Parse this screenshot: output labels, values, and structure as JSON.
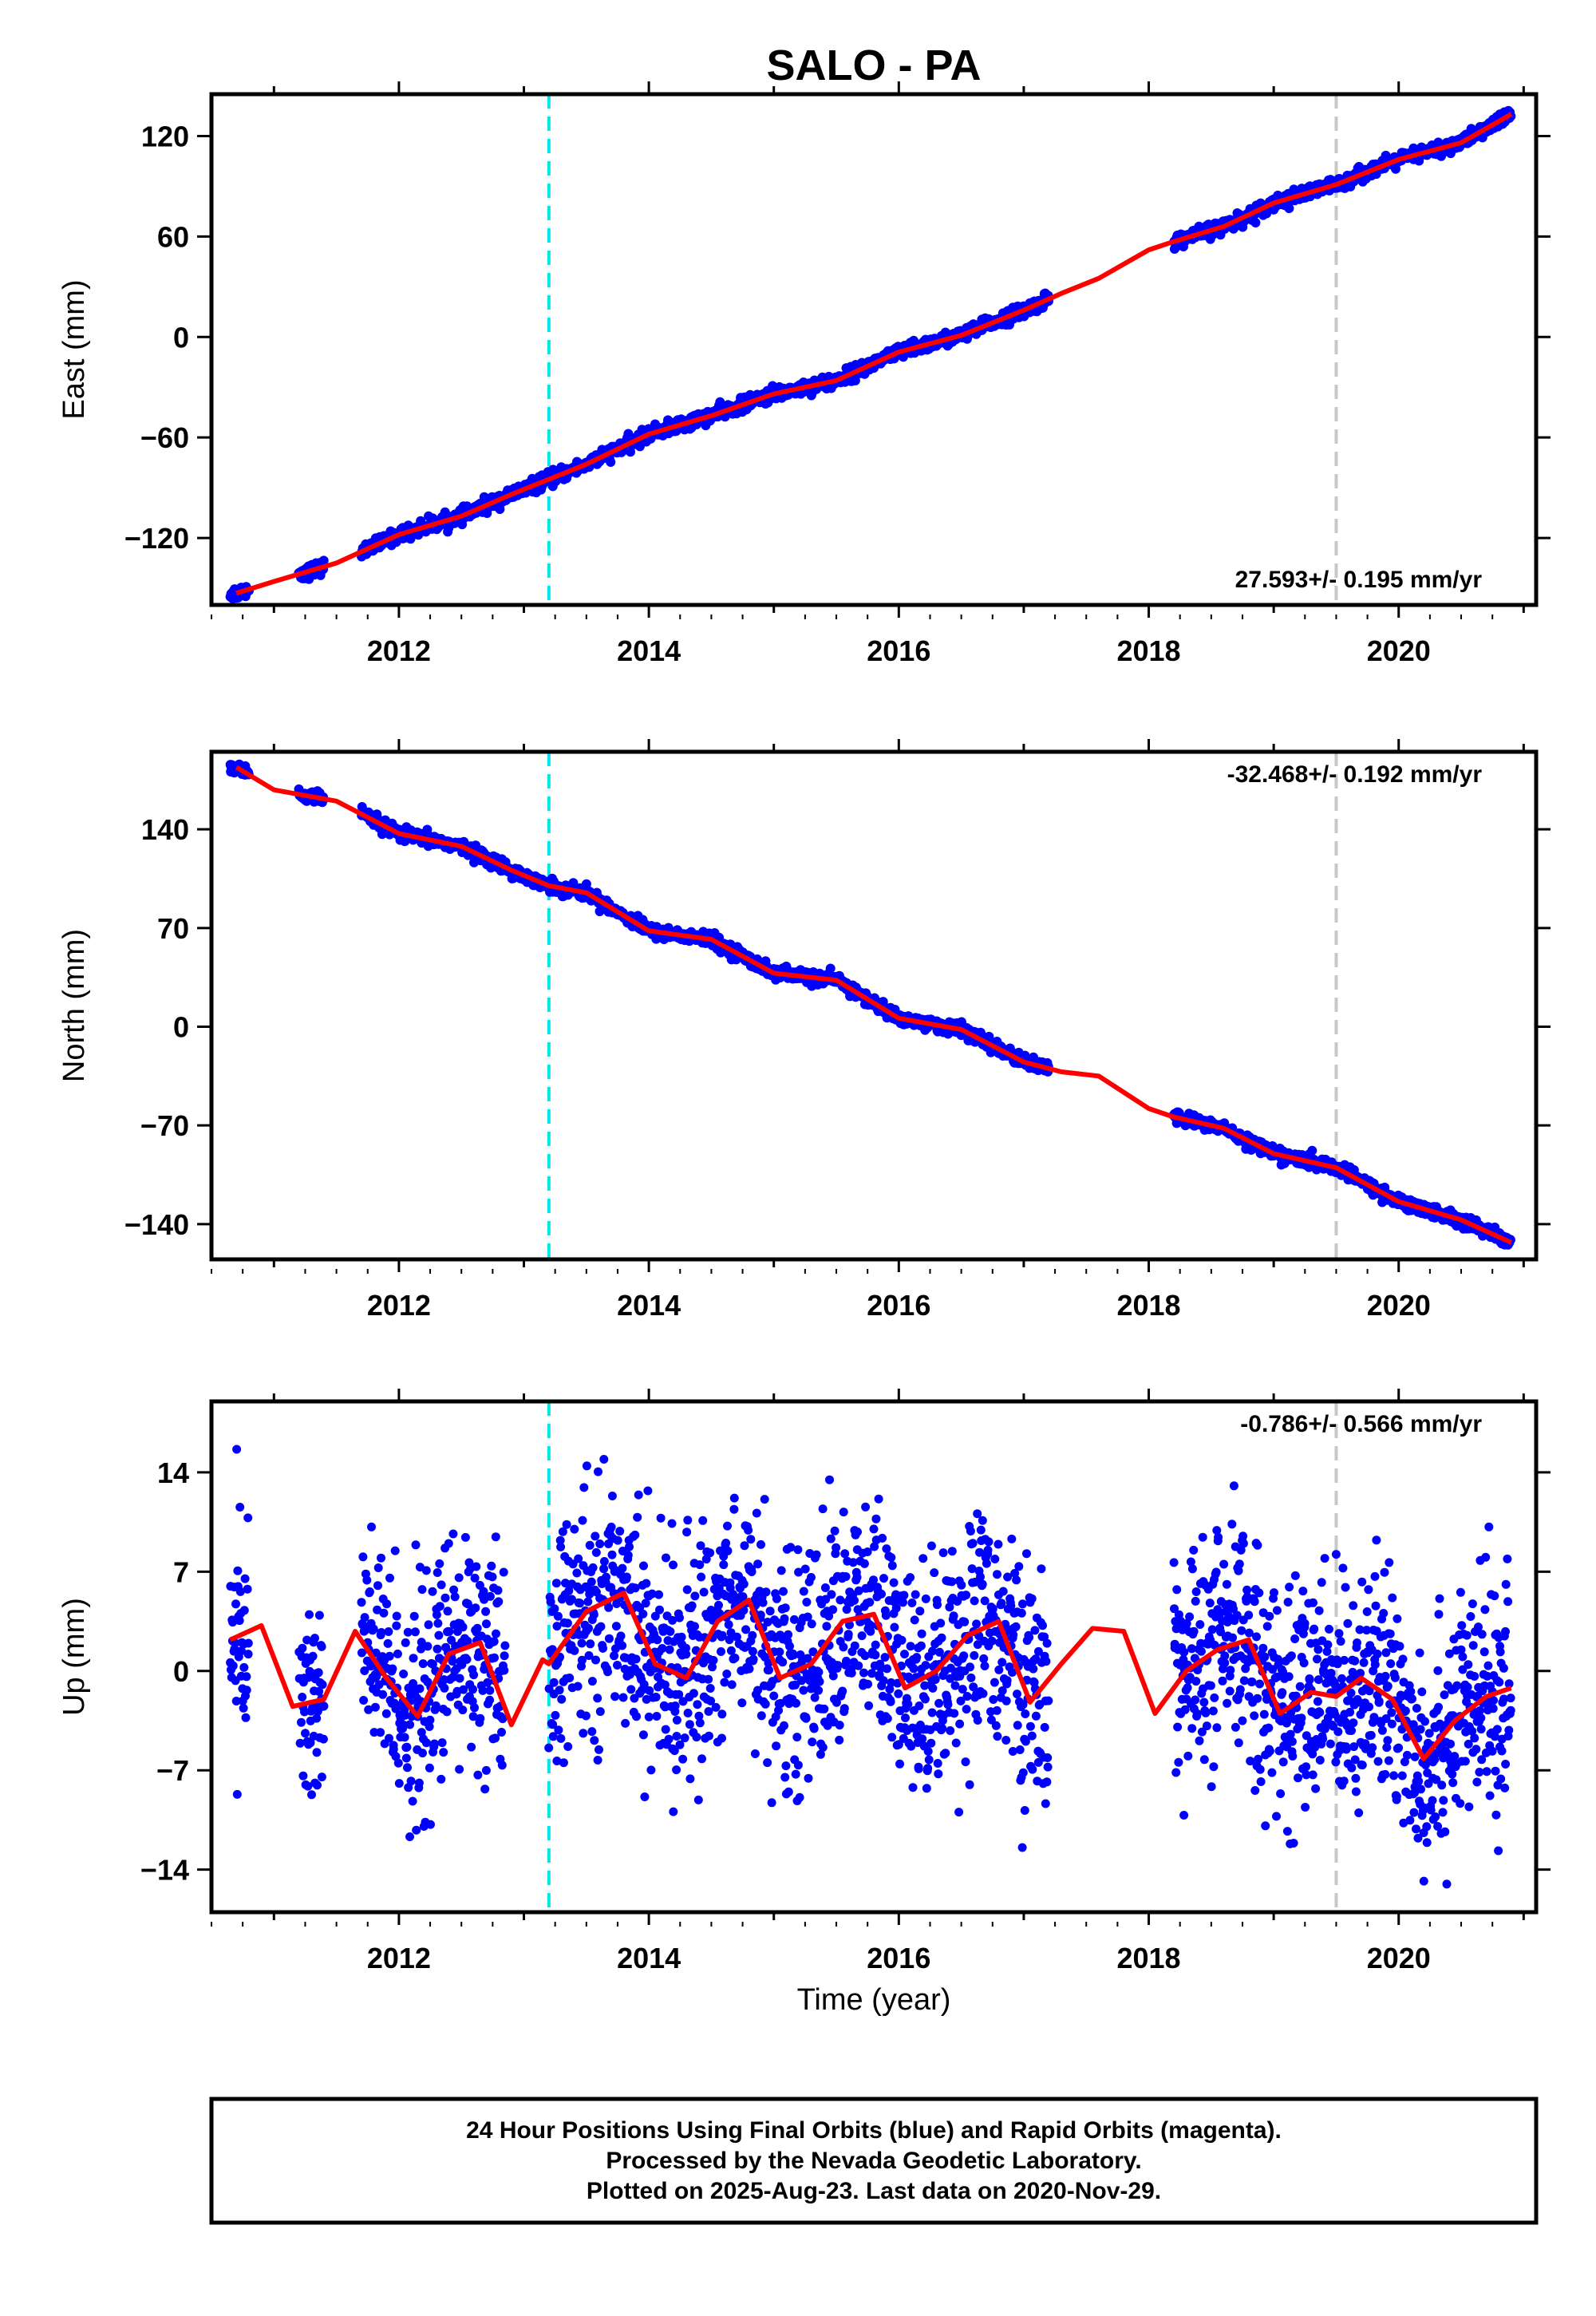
{
  "chart_data": {
    "type": "scatter",
    "title": "SALO - PA",
    "xlabel": "Time (year)",
    "xlim": [
      2010.5,
      2021.1
    ],
    "x_ticks": [
      "2012",
      "2014",
      "2016",
      "2018",
      "2020"
    ],
    "vertical_markers": [
      {
        "x": 2013.2,
        "color": "#00e5ee",
        "style": "dashed"
      },
      {
        "x": 2019.5,
        "color": "#c8c8c8",
        "style": "dashed"
      }
    ],
    "colors": {
      "final_orbits": "#0000ff",
      "rapid_orbits": "#ff00ff",
      "model": "#ff0000"
    },
    "panels": [
      {
        "ylabel": "East (mm)",
        "ylim": [
          -160,
          145
        ],
        "y_ticks": [
          120,
          60,
          0,
          -60,
          -120
        ],
        "y_tick_labels": [
          "120",
          "60",
          "0",
          "−60",
          "−120"
        ],
        "rate_text": "27.593+/- 0.195 mm/yr",
        "rate_position": "bottom-right",
        "model_series": {
          "x": [
            2010.7,
            2011.0,
            2011.5,
            2012.0,
            2012.5,
            2012.9,
            2013.2,
            2013.5,
            2014.0,
            2014.5,
            2015.0,
            2015.5,
            2016.0,
            2016.5,
            2017.0,
            2017.3,
            2017.6,
            2018.0,
            2018.2,
            2018.6,
            2019.0,
            2019.5,
            2020.0,
            2020.5,
            2020.9
          ],
          "y": [
            -153,
            -146,
            -135,
            -118,
            -107,
            -94,
            -85,
            -76,
            -58,
            -47,
            -34,
            -26,
            -9,
            1,
            16,
            26,
            35,
            52,
            57,
            66,
            80,
            91,
            106,
            116,
            133
          ]
        },
        "data_segments": [
          [
            2010.65,
            2010.8
          ],
          [
            2011.2,
            2011.4
          ],
          [
            2011.7,
            2017.2
          ],
          [
            2018.2,
            2020.9
          ]
        ],
        "noise_mm": 2.0
      },
      {
        "ylabel": "North (mm)",
        "ylim": [
          -165,
          195
        ],
        "y_ticks": [
          140,
          70,
          0,
          -70,
          -140
        ],
        "y_tick_labels": [
          "140",
          "70",
          "0",
          "−70",
          "−140"
        ],
        "rate_text": "-32.468+/- 0.192 mm/yr",
        "rate_position": "top-right",
        "model_series": {
          "x": [
            2010.7,
            2011.0,
            2011.5,
            2012.0,
            2012.5,
            2012.9,
            2013.2,
            2013.5,
            2014.0,
            2014.5,
            2015.0,
            2015.5,
            2016.0,
            2016.5,
            2017.0,
            2017.3,
            2017.6,
            2018.0,
            2018.2,
            2018.6,
            2019.0,
            2019.5,
            2020.0,
            2020.5,
            2020.9
          ],
          "y": [
            184,
            168,
            160,
            137,
            128,
            111,
            100,
            95,
            68,
            62,
            38,
            33,
            6,
            -2,
            -25,
            -32,
            -35,
            -58,
            -64,
            -72,
            -90,
            -100,
            -124,
            -137,
            -153
          ]
        },
        "data_segments": [
          [
            2010.65,
            2010.8
          ],
          [
            2011.2,
            2011.4
          ],
          [
            2011.7,
            2017.2
          ],
          [
            2018.2,
            2020.9
          ]
        ],
        "noise_mm": 2.2
      },
      {
        "ylabel": "Up (mm)",
        "ylim": [
          -17,
          19
        ],
        "y_ticks": [
          14,
          7,
          0,
          -7,
          -14
        ],
        "y_tick_labels": [
          "14",
          "7",
          "0",
          "−7",
          "−14"
        ],
        "rate_text": "-0.786+/- 0.566 mm/yr",
        "rate_position": "top-right",
        "model_series": {
          "x": [
            2010.65,
            2010.9,
            2011.15,
            2011.4,
            2011.65,
            2011.9,
            2012.15,
            2012.4,
            2012.65,
            2012.9,
            2013.15,
            2013.2,
            2013.5,
            2013.8,
            2014.05,
            2014.3,
            2014.55,
            2014.8,
            2015.05,
            2015.3,
            2015.55,
            2015.8,
            2016.05,
            2016.3,
            2016.55,
            2016.8,
            2017.05,
            2017.3,
            2017.55,
            2017.8,
            2018.05,
            2018.3,
            2018.55,
            2018.8,
            2019.05,
            2019.3,
            2019.5,
            2019.7,
            2019.95,
            2020.2,
            2020.45,
            2020.7,
            2020.9
          ],
          "y": [
            2.2,
            3.2,
            -2.5,
            -2.0,
            2.8,
            -0.5,
            -3.2,
            1.2,
            2.0,
            -3.8,
            0.8,
            0.5,
            4.2,
            5.5,
            0.5,
            -0.5,
            3.5,
            5.0,
            -0.5,
            0.5,
            3.5,
            4.0,
            -1.2,
            0.0,
            2.5,
            3.5,
            -2.2,
            0.5,
            3.0,
            2.8,
            -3.0,
            0.0,
            1.5,
            2.2,
            -3.0,
            -1.5,
            -1.8,
            -0.5,
            -2.0,
            -6.2,
            -3.5,
            -1.8,
            -1.2
          ]
        },
        "data_segments": [
          [
            2010.65,
            2010.8
          ],
          [
            2011.2,
            2011.4
          ],
          [
            2011.7,
            2012.85
          ],
          [
            2013.2,
            2017.2
          ],
          [
            2018.2,
            2020.9
          ]
        ],
        "noise_mm": 4.0
      }
    ]
  },
  "footer": {
    "line1": "24 Hour Positions Using Final Orbits (blue) and Rapid Orbits (magenta).",
    "line2": "Processed by the Nevada Geodetic Laboratory.",
    "line3": "Plotted on 2025-Aug-23. Last data on 2020-Nov-29."
  }
}
